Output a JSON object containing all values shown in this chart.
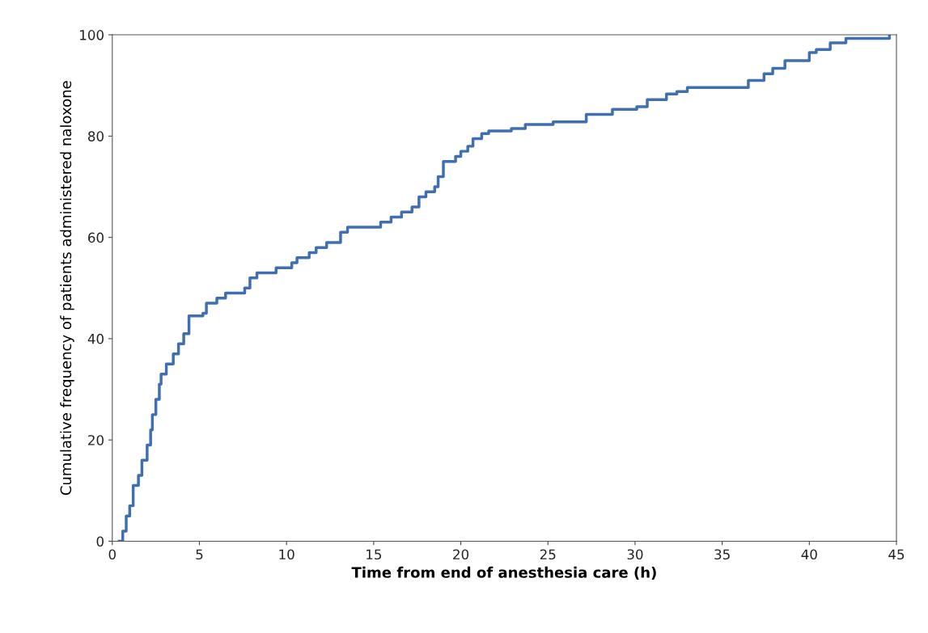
{
  "chart_data": {
    "type": "step",
    "xlabel": "Time from end of anesthesia care (h)",
    "ylabel": "Cumulative frequency of patients administered naloxone",
    "series": [
      {
        "color": "#3f6fb0",
        "x": [
          0.4,
          0.6,
          0.8,
          1.0,
          1.2,
          1.5,
          1.7,
          2.0,
          2.2,
          2.3,
          2.5,
          2.7,
          2.8,
          3.1,
          3.5,
          3.8,
          4.1,
          4.4,
          5.2,
          5.4,
          6.0,
          6.5,
          7.6,
          7.9,
          8.3,
          9.4,
          10.3,
          10.6,
          11.3,
          11.7,
          12.3,
          13.1,
          13.5,
          15.4,
          16.0,
          16.6,
          17.2,
          17.6,
          18.0,
          18.5,
          18.7,
          19.0,
          19.7,
          20.0,
          20.4,
          20.7,
          21.2,
          21.6,
          22.9,
          23.7,
          25.3,
          27.2,
          28.7,
          30.1,
          30.7,
          31.8,
          32.4,
          33.0,
          36.5,
          37.4,
          37.9,
          38.6,
          40.0,
          40.4,
          41.2,
          42.1,
          43.8,
          44.6
        ],
        "values": [
          0,
          2,
          5,
          7,
          11,
          13,
          16,
          19,
          22,
          25,
          28,
          31,
          33,
          35,
          37,
          39,
          41,
          44.5,
          45,
          47,
          48,
          49,
          50,
          52,
          53,
          54,
          55,
          56,
          57,
          58,
          59,
          61,
          62,
          63,
          64,
          65,
          66,
          68,
          69,
          70,
          72,
          75,
          76,
          77,
          78,
          79.5,
          80.5,
          81,
          81.5,
          82.3,
          82.8,
          84.3,
          85.3,
          85.8,
          87.2,
          88.3,
          88.8,
          89.6,
          91,
          92.3,
          93.4,
          94.9,
          96.5,
          97.1,
          98.4,
          99.3,
          99.3,
          100
        ]
      }
    ],
    "xlim": [
      0,
      45
    ],
    "ylim": [
      0,
      100
    ],
    "xticks": [
      0,
      5,
      10,
      15,
      20,
      25,
      30,
      35,
      40,
      45
    ],
    "yticks": [
      0,
      20,
      40,
      60,
      80,
      100
    ],
    "grid": false,
    "legend": false
  }
}
